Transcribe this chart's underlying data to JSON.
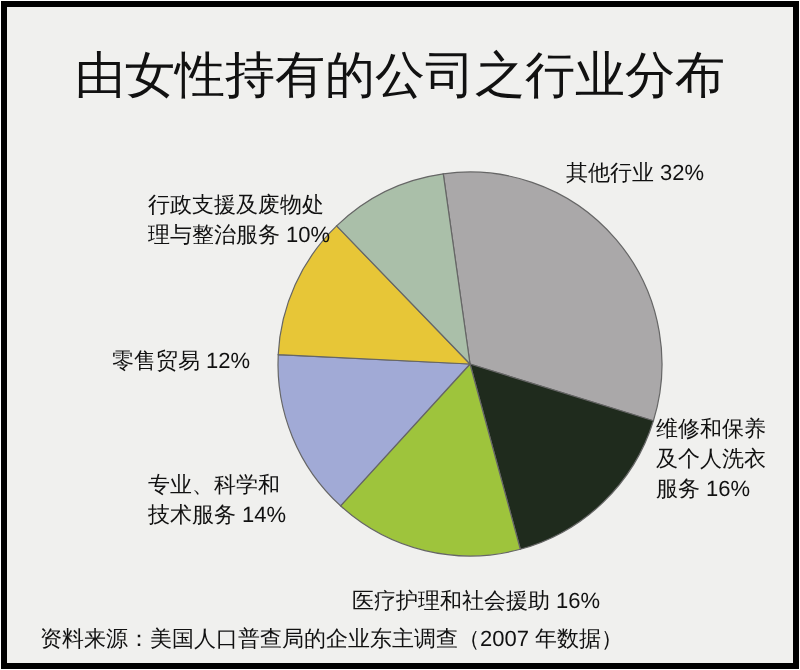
{
  "chart_data": {
    "type": "pie",
    "title": "由女性持有的公司之行业分布",
    "categories": [
      "其他行业",
      "维修和保养及个人洗衣服务",
      "医疗护理和社会援助",
      "专业、科学和技术服务",
      "零售贸易",
      "行政支援及废物处理与整治服务"
    ],
    "values": [
      32,
      16,
      16,
      14,
      12,
      10
    ],
    "value_labels": [
      "32%",
      "16%",
      "16%",
      "14%",
      "12%",
      "10%"
    ],
    "colors": [
      "#aaa8a9",
      "#1f2b1d",
      "#9ec43c",
      "#a1aad6",
      "#e7c637",
      "#aabfa9"
    ],
    "annotations": [
      "资料来源：美国人口普查局的企业东主调查（2007 年数据）"
    ]
  }
}
